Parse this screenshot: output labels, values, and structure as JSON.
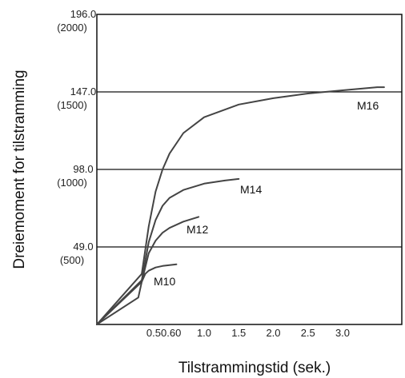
{
  "chart_data": {
    "type": "line",
    "title": "",
    "xlabel": "Tilstrammingstid (sek.)",
    "ylabel": "Dreiemoment for tilstramming",
    "xlim": [
      0,
      3.6
    ],
    "ylim": [
      0,
      196
    ],
    "grid": "horizontal",
    "x_ticks": [
      {
        "value": 0.5,
        "label": "0.5"
      },
      {
        "value": 0.6,
        "label": "0.60"
      },
      {
        "value": 1.0,
        "label": "1.0"
      },
      {
        "value": 1.5,
        "label": "1.5"
      },
      {
        "value": 2.0,
        "label": "2.0"
      },
      {
        "value": 2.5,
        "label": "2.5"
      },
      {
        "value": 3.0,
        "label": "3.0"
      }
    ],
    "y_ticks": [
      {
        "value": 196,
        "label": "196.0",
        "sublabel": "(2000)"
      },
      {
        "value": 147,
        "label": "147.0",
        "sublabel": "(1500)"
      },
      {
        "value": 98,
        "label": "98.0",
        "sublabel": "(1000)"
      },
      {
        "value": 49,
        "label": "49.0",
        "sublabel": "(500)"
      }
    ],
    "series": [
      {
        "name": "M16",
        "x": [
          0,
          0.1,
          0.2,
          0.3,
          0.4,
          0.5,
          0.7,
          1.0,
          1.5,
          2.0,
          2.5,
          3.0,
          3.5,
          3.6
        ],
        "y": [
          0,
          32,
          62,
          84,
          98,
          108,
          121,
          131,
          139,
          143,
          146,
          148,
          150,
          150
        ]
      },
      {
        "name": "M14",
        "x": [
          0,
          0.1,
          0.2,
          0.3,
          0.4,
          0.5,
          0.7,
          1.0,
          1.3,
          1.5
        ],
        "y": [
          0,
          28,
          52,
          66,
          75,
          80,
          85,
          89,
          91,
          92
        ]
      },
      {
        "name": "M12",
        "x": [
          0,
          0.1,
          0.2,
          0.3,
          0.4,
          0.5,
          0.7,
          0.92
        ],
        "y": [
          0,
          27,
          45,
          53,
          58,
          61,
          65,
          68
        ]
      },
      {
        "name": "M10",
        "x": [
          0,
          0.05,
          0.1,
          0.15,
          0.2,
          0.3,
          0.4,
          0.6
        ],
        "y": [
          0,
          17,
          27,
          32,
          34,
          36,
          37,
          38
        ]
      }
    ]
  }
}
